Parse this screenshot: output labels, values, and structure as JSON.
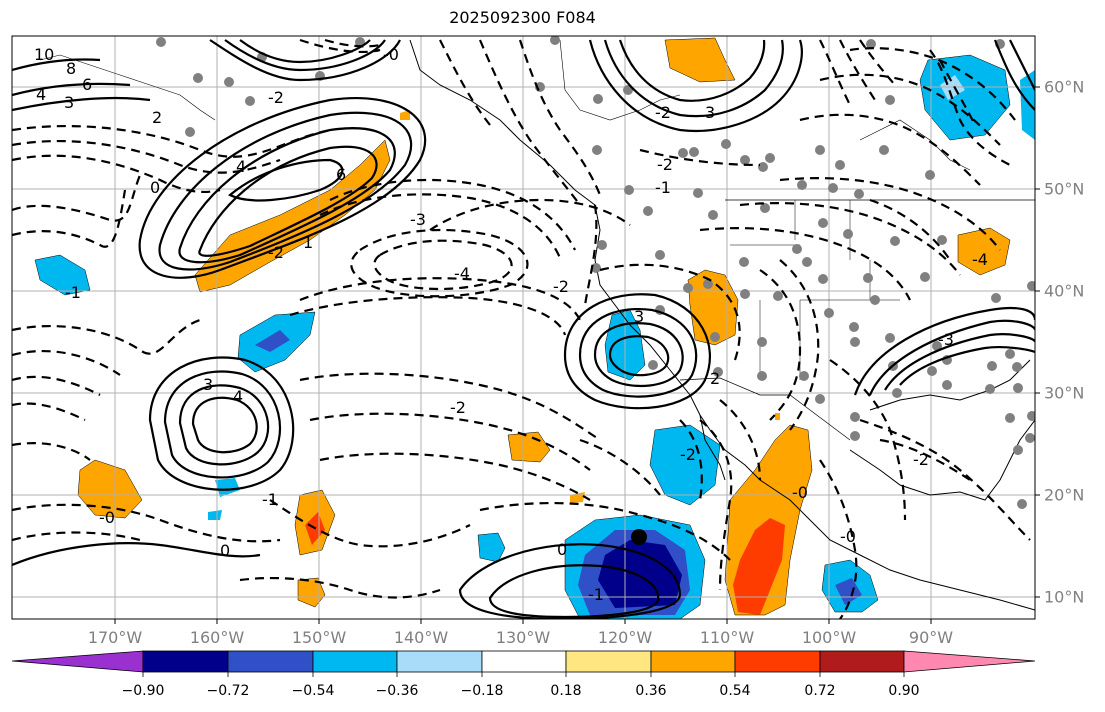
{
  "title": "2025092300 F084",
  "axes": {
    "lon_labels": [
      "170°W",
      "160°W",
      "150°W",
      "140°W",
      "130°W",
      "120°W",
      "110°W",
      "100°W",
      "90°W"
    ],
    "lat_labels": [
      "60°N",
      "50°N",
      "40°N",
      "30°N",
      "20°N",
      "10°N"
    ]
  },
  "colorbar": {
    "labels": [
      "−0.90",
      "−0.72",
      "−0.54",
      "−0.36",
      "−0.18",
      "0.18",
      "0.36",
      "0.54",
      "0.72",
      "0.90"
    ],
    "colors": [
      "#9b30d0",
      "#00008b",
      "#3050c8",
      "#00b8f0",
      "#a8dcf8",
      "#ffffff",
      "#ffe680",
      "#ffa500",
      "#ff3c00",
      "#b01c1c",
      "#ff88b0"
    ]
  },
  "contour_labels": [
    {
      "text": "10"
    },
    {
      "text": "8"
    },
    {
      "text": "6"
    },
    {
      "text": "4"
    },
    {
      "text": "3"
    },
    {
      "text": "2"
    },
    {
      "text": "-0"
    },
    {
      "text": "-1"
    },
    {
      "text": "-2"
    },
    {
      "text": "-3"
    },
    {
      "text": "-4"
    },
    {
      "text": "0"
    },
    {
      "text": "1"
    },
    {
      "text": "-2"
    },
    {
      "text": "-2"
    },
    {
      "text": "-0"
    },
    {
      "text": "-2"
    },
    {
      "text": "3"
    },
    {
      "text": "-2"
    },
    {
      "text": "6"
    },
    {
      "text": "4"
    },
    {
      "text": "2"
    },
    {
      "text": "-1"
    },
    {
      "text": "-2"
    },
    {
      "text": "-0"
    },
    {
      "text": "0"
    },
    {
      "text": "-1"
    },
    {
      "text": "4"
    },
    {
      "text": "3"
    },
    {
      "text": "-2"
    },
    {
      "text": "-2"
    },
    {
      "text": "3"
    },
    {
      "text": "-1"
    },
    {
      "text": "-0"
    },
    {
      "text": "0"
    },
    {
      "text": "-4"
    },
    {
      "text": "-3"
    }
  ]
}
